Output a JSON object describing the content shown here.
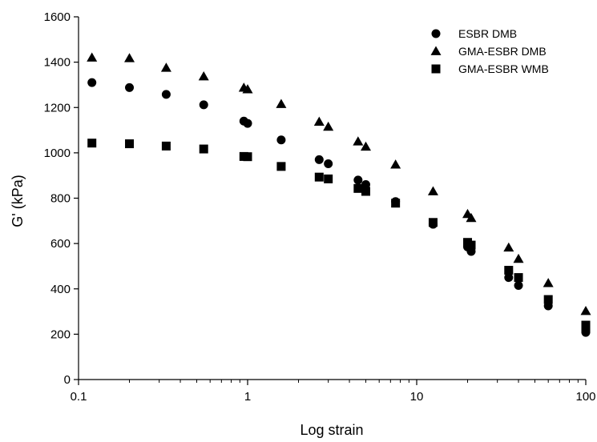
{
  "chart_data": {
    "type": "scatter",
    "title": "",
    "xlabel": "Log strain",
    "ylabel": "G' (kPa)",
    "x_scale": "log",
    "xlim": [
      0.1,
      100
    ],
    "ylim": [
      0,
      1600
    ],
    "x_ticks": [
      0.1,
      1,
      10,
      100
    ],
    "x_tick_labels": [
      "0.1",
      "1",
      "10",
      "100"
    ],
    "y_ticks": [
      0,
      200,
      400,
      600,
      800,
      1000,
      1200,
      1400,
      1600
    ],
    "y_tick_labels": [
      "0",
      "200",
      "400",
      "600",
      "800",
      "1000",
      "1200",
      "1400",
      "1600"
    ],
    "grid": false,
    "legend_position": "top-right",
    "series": [
      {
        "name": "ESBR DMB",
        "marker": "circle",
        "color": "#000000",
        "x": [
          0.12,
          0.2,
          0.33,
          0.55,
          0.95,
          1.0,
          1.58,
          2.65,
          3.0,
          4.5,
          5.0,
          7.5,
          12.5,
          20,
          21,
          35,
          40,
          60,
          100,
          100
        ],
        "y": [
          1310,
          1288,
          1258,
          1212,
          1140,
          1130,
          1057,
          970,
          952,
          880,
          860,
          785,
          685,
          585,
          565,
          450,
          415,
          325,
          218,
          208
        ]
      },
      {
        "name": "GMA-ESBR DMB",
        "marker": "triangle",
        "color": "#000000",
        "x": [
          0.12,
          0.2,
          0.33,
          0.55,
          0.95,
          1.0,
          1.58,
          2.65,
          3.0,
          4.5,
          5.0,
          7.5,
          12.5,
          20,
          21,
          35,
          40,
          60,
          100
        ],
        "y": [
          1420,
          1417,
          1375,
          1337,
          1287,
          1280,
          1215,
          1137,
          1115,
          1050,
          1027,
          948,
          830,
          730,
          712,
          582,
          532,
          425,
          302
        ]
      },
      {
        "name": "GMA-ESBR WMB",
        "marker": "square",
        "color": "#000000",
        "x": [
          0.12,
          0.2,
          0.33,
          0.55,
          0.95,
          1.0,
          1.58,
          2.65,
          3.0,
          4.5,
          5.0,
          7.5,
          12.5,
          20,
          21,
          35,
          40,
          60,
          100,
          100
        ],
        "y": [
          1043,
          1040,
          1030,
          1017,
          984,
          983,
          940,
          893,
          885,
          843,
          830,
          778,
          693,
          605,
          593,
          482,
          450,
          353,
          240,
          225
        ]
      }
    ]
  }
}
